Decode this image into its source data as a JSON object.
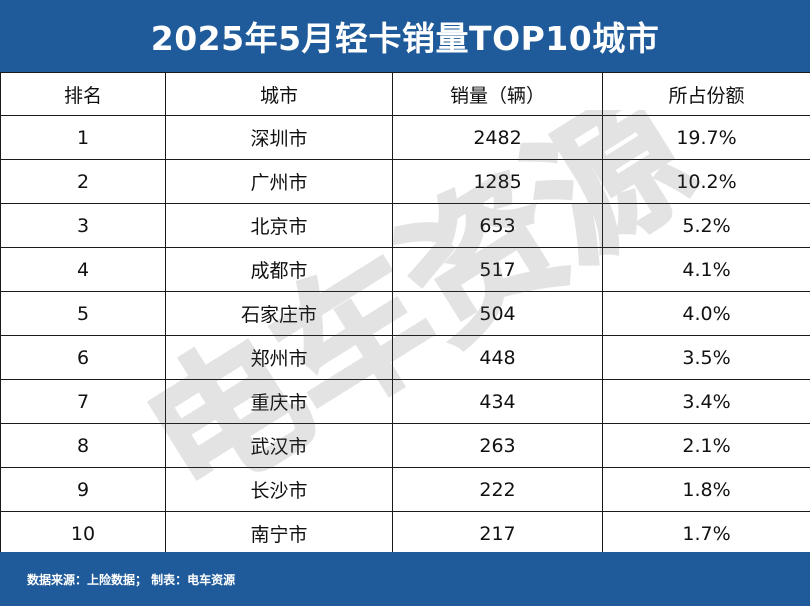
{
  "title": "2025年5月轻卡销量TOP10城市",
  "columns": [
    "排名",
    "城市",
    "销量（辆）",
    "所占份额"
  ],
  "rows": [
    {
      "rank": "1",
      "city": "深圳市",
      "sales": "2482",
      "share": "19.7%"
    },
    {
      "rank": "2",
      "city": "广州市",
      "sales": "1285",
      "share": "10.2%"
    },
    {
      "rank": "3",
      "city": "北京市",
      "sales": "653",
      "share": "5.2%"
    },
    {
      "rank": "4",
      "city": "成都市",
      "sales": "517",
      "share": "4.1%"
    },
    {
      "rank": "5",
      "city": "石家庄市",
      "sales": "504",
      "share": "4.0%"
    },
    {
      "rank": "6",
      "city": "郑州市",
      "sales": "448",
      "share": "3.5%"
    },
    {
      "rank": "7",
      "city": "重庆市",
      "sales": "434",
      "share": "3.4%"
    },
    {
      "rank": "8",
      "city": "武汉市",
      "sales": "263",
      "share": "2.1%"
    },
    {
      "rank": "9",
      "city": "长沙市",
      "sales": "222",
      "share": "1.8%"
    },
    {
      "rank": "10",
      "city": "南宁市",
      "sales": "217",
      "share": "1.7%"
    }
  ],
  "footer": "数据来源：上险数据；  制表：电车资源",
  "watermark": "电车资源",
  "colors": {
    "header_bg": "#1f5b9a",
    "border": "#1a1a1a",
    "text": "#111111"
  }
}
